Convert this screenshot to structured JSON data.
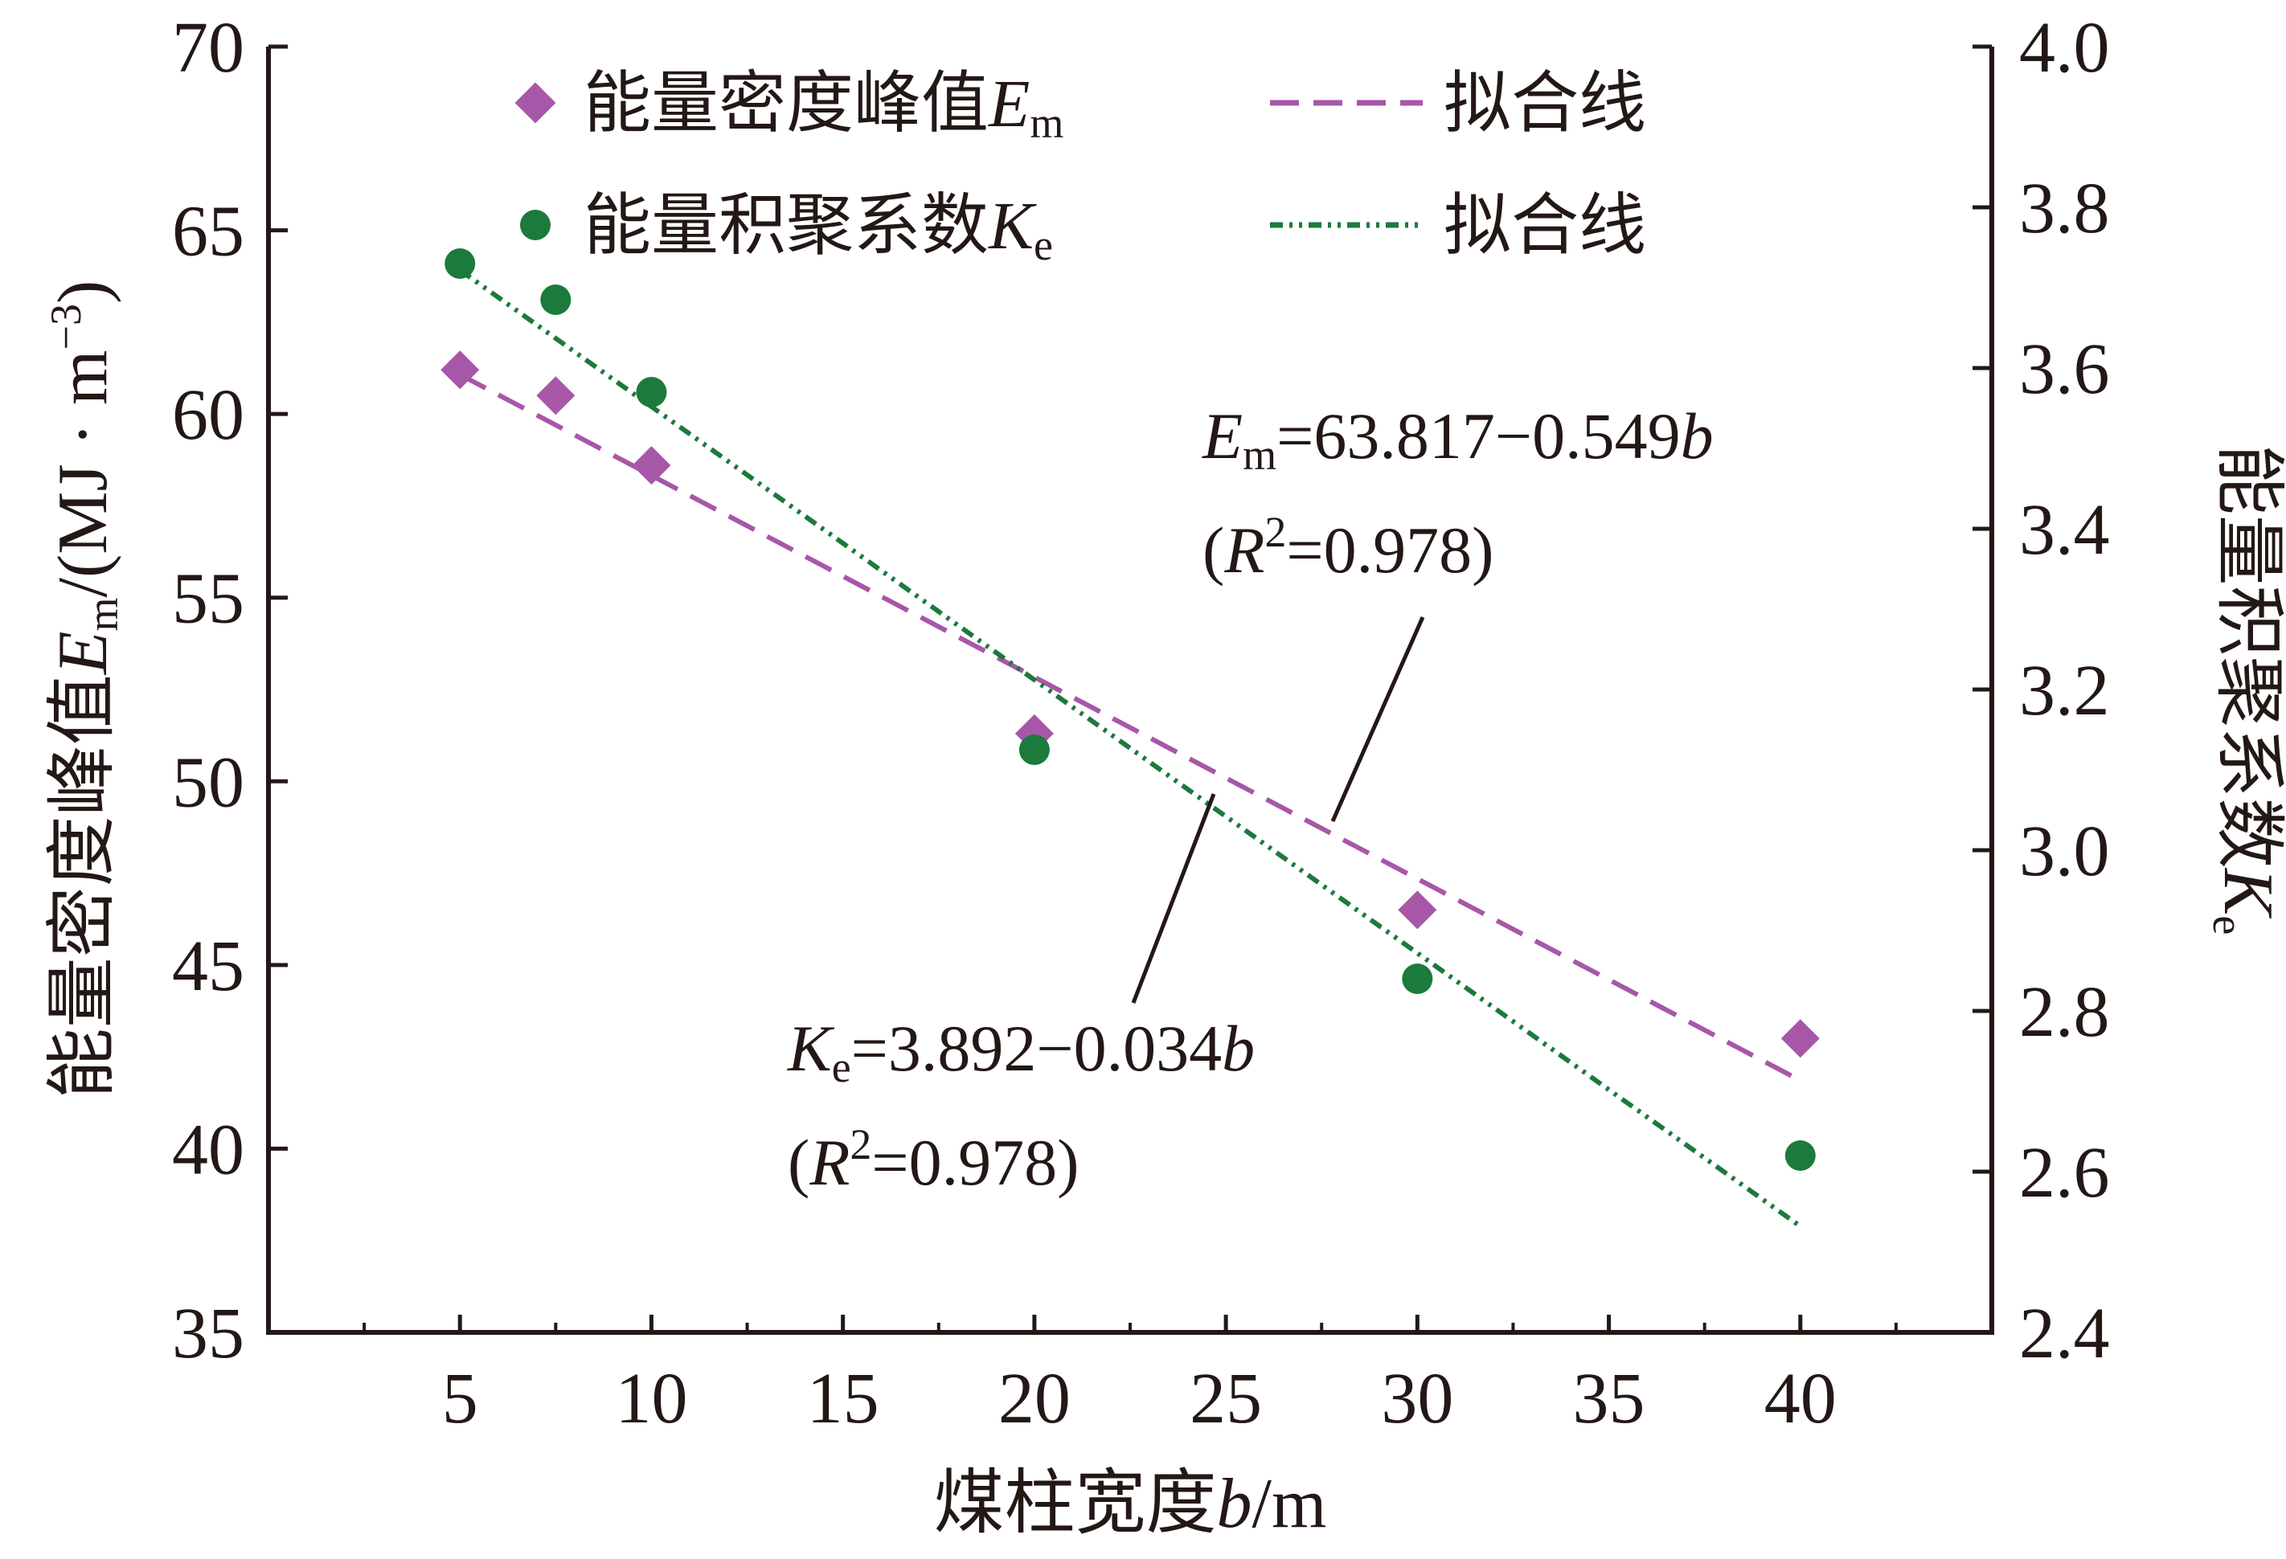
{
  "chart_data": {
    "type": "scatter",
    "x_axis": {
      "label_main": "煤柱宽度",
      "label_var": "b",
      "label_unit": "/m",
      "range": [
        0,
        45
      ],
      "ticks": [
        5,
        10,
        15,
        20,
        25,
        30,
        35,
        40
      ]
    },
    "y_axis_left": {
      "label_main": "能量密度峰值",
      "label_var": "E",
      "label_sub": "m",
      "label_unit": "/(MJ · m",
      "label_exp": "−3",
      "label_close": ")",
      "range": [
        35,
        70
      ],
      "ticks": [
        35,
        40,
        45,
        50,
        55,
        60,
        65,
        70
      ]
    },
    "y_axis_right": {
      "label_main": "能量积聚系数",
      "label_var": "K",
      "label_sub": "e",
      "range": [
        2.4,
        4.0
      ],
      "ticks": [
        "2.4",
        "2.6",
        "2.8",
        "3.0",
        "3.2",
        "3.4",
        "3.6",
        "3.8",
        "4.0"
      ]
    },
    "series": [
      {
        "legend_main": "能量密度峰值",
        "legend_var": "E",
        "legend_sub": "m",
        "axis": "left",
        "marker": "diamond",
        "color": "#A757A8",
        "x": [
          5,
          7.5,
          10,
          20,
          30,
          40
        ],
        "y": [
          61.2,
          60.5,
          58.6,
          51.3,
          46.5,
          43.0
        ]
      },
      {
        "legend_main": "能量积聚系数",
        "legend_var": "K",
        "legend_sub": "e",
        "axis": "right",
        "marker": "circle",
        "color": "#1B7A3C",
        "x": [
          5,
          7.5,
          10,
          20,
          30,
          40
        ],
        "y": [
          3.73,
          3.685,
          3.57,
          3.125,
          2.84,
          2.62
        ]
      }
    ],
    "fits": [
      {
        "legend": "拟合线",
        "axis": "left",
        "style": "dashed",
        "color": "#A757A8",
        "intercept": 63.817,
        "slope": -0.549,
        "x_range": [
          5,
          40
        ],
        "eq_var": "E",
        "eq_sub": "m",
        "eq_rhs": "=63.817−0.549",
        "eq_b": "b",
        "r2_open": "(",
        "r2_var": "R",
        "r2_exp": "2",
        "r2_rest": "=0.978)"
      },
      {
        "legend": "拟合线",
        "axis": "right",
        "style": "dash-dot-dot",
        "color": "#1B7A3C",
        "intercept": 3.892,
        "slope": -0.034,
        "x_range": [
          5,
          40
        ],
        "eq_var": "K",
        "eq_sub": "e",
        "eq_rhs": "=3.892−0.034",
        "eq_b": "b",
        "r2_open": "(",
        "r2_var": "R",
        "r2_exp": "2",
        "r2_rest": "=0.978)"
      }
    ],
    "legend_position": "top-left",
    "grid": false
  }
}
